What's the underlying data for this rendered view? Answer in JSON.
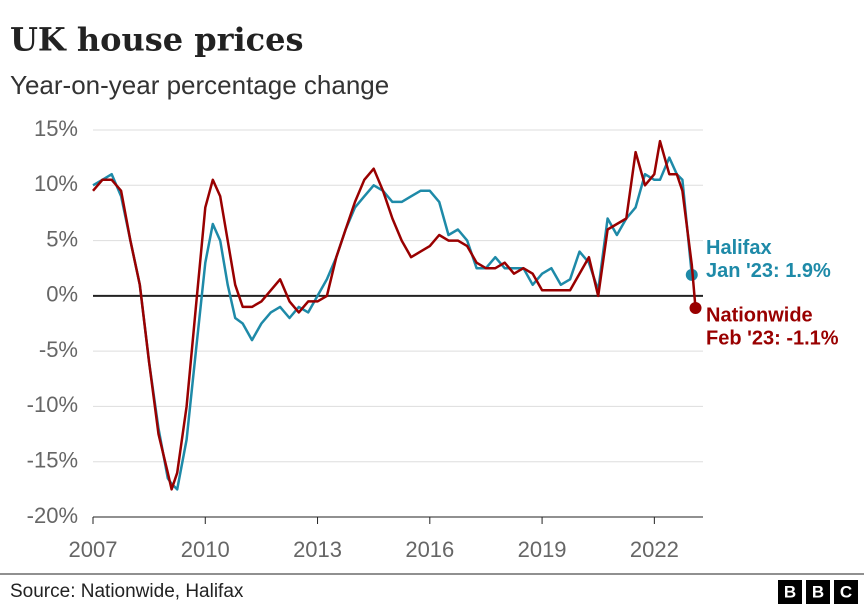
{
  "chart_data": {
    "type": "line",
    "title": "UK house prices",
    "subtitle": "Year-on-year percentage change",
    "source": "Source: Nationwide, Halifax",
    "logo": [
      "B",
      "B",
      "C"
    ],
    "x": [
      2007.0,
      2007.25,
      2007.5,
      2007.75,
      2008.0,
      2008.25,
      2008.5,
      2008.75,
      2009.0,
      2009.1,
      2009.25,
      2009.5,
      2009.75,
      2010.0,
      2010.2,
      2010.4,
      2010.6,
      2010.8,
      2011.0,
      2011.25,
      2011.5,
      2011.75,
      2012.0,
      2012.25,
      2012.5,
      2012.75,
      2013.0,
      2013.25,
      2013.5,
      2013.75,
      2014.0,
      2014.25,
      2014.5,
      2014.75,
      2015.0,
      2015.25,
      2015.5,
      2015.75,
      2016.0,
      2016.25,
      2016.5,
      2016.75,
      2017.0,
      2017.25,
      2017.5,
      2017.75,
      2018.0,
      2018.25,
      2018.5,
      2018.75,
      2019.0,
      2019.25,
      2019.5,
      2019.75,
      2020.0,
      2020.25,
      2020.5,
      2020.75,
      2021.0,
      2021.25,
      2021.5,
      2021.75,
      2022.0,
      2022.15,
      2022.4,
      2022.6,
      2022.75,
      2023.0,
      2023.1
    ],
    "series": [
      {
        "name": "Halifax",
        "end_label": "Jan '23: 1.9%",
        "color": "#1e8aa8",
        "values": [
          10,
          10.5,
          11,
          9,
          5,
          1,
          -6,
          -12,
          -16.5,
          -17,
          -17.5,
          -13,
          -5,
          3,
          6.5,
          5,
          1,
          -2,
          -2.5,
          -4,
          -2.5,
          -1.5,
          -1,
          -2,
          -1,
          -1.5,
          0,
          1.5,
          3.5,
          6,
          8,
          9,
          10,
          9.5,
          8.5,
          8.5,
          9,
          9.5,
          9.5,
          8.5,
          5.5,
          6,
          5,
          2.5,
          2.5,
          3.5,
          2.5,
          2.5,
          2.5,
          1,
          2,
          2.5,
          1,
          1.5,
          4,
          3,
          0.5,
          7,
          5.5,
          7,
          8,
          11,
          10.5,
          10.5,
          12.5,
          11,
          10.5,
          1.9,
          null
        ]
      },
      {
        "name": "Nationwide",
        "end_label": "Feb '23: -1.1%",
        "color": "#990000",
        "values": [
          9.5,
          10.5,
          10.5,
          9.5,
          5,
          1,
          -6,
          -12.5,
          -16,
          -17.5,
          -16,
          -10,
          -1,
          8,
          10.5,
          9,
          5,
          1,
          -1,
          -1,
          -0.5,
          0.5,
          1.5,
          -0.5,
          -1.5,
          -0.5,
          -0.5,
          0,
          3.5,
          6,
          8.5,
          10.5,
          11.5,
          9.5,
          7,
          5,
          3.5,
          4,
          4.5,
          5.5,
          5,
          5,
          4.5,
          3,
          2.5,
          2.5,
          3,
          2,
          2.5,
          2,
          0.5,
          0.5,
          0.5,
          0.5,
          2,
          3.5,
          0,
          6,
          6.5,
          7,
          13,
          10,
          11,
          14,
          11,
          11,
          9.5,
          2.8,
          -1.1
        ]
      }
    ],
    "xlim": [
      2007,
      2023.3
    ],
    "xticks": [
      2007,
      2010,
      2013,
      2016,
      2019,
      2022
    ],
    "ylim": [
      -20,
      15
    ],
    "yticks": [
      {
        "value": -20,
        "label": "-20%"
      },
      {
        "value": -15,
        "label": "-15%"
      },
      {
        "value": -10,
        "label": "-10%"
      },
      {
        "value": -5,
        "label": "-5%"
      },
      {
        "value": 0,
        "label": "0%"
      },
      {
        "value": 5,
        "label": "5%"
      },
      {
        "value": 10,
        "label": "10%"
      },
      {
        "value": 15,
        "label": "15%"
      }
    ],
    "grid": true
  }
}
